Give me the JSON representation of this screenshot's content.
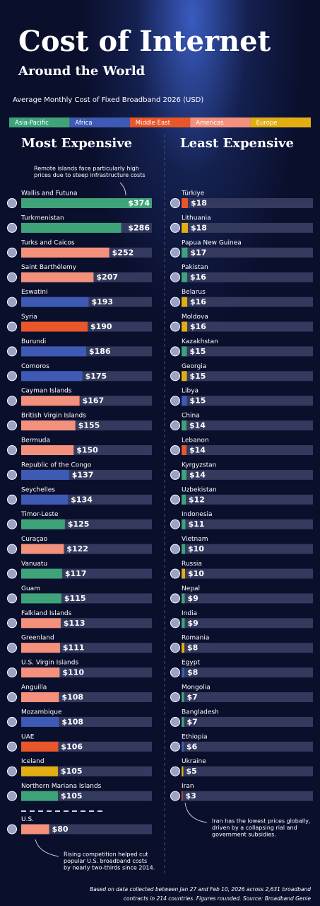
{
  "title": "Cost of Internet",
  "title_line2": "Around the World",
  "subtitle": "Average Monthly Cost of Fixed Broadband 2026 (USD)",
  "legend": [
    {
      "name": "Asia-Pacific",
      "color": "#3fa37a"
    },
    {
      "name": "Africa",
      "color": "#3e5ab4"
    },
    {
      "name": "Middle East",
      "color": "#e8562a"
    },
    {
      "name": "Americas",
      "color": "#f4917c"
    },
    {
      "name": "Europe",
      "color": "#e2ae12"
    }
  ],
  "chart_data": [
    {
      "type": "bar",
      "orientation": "horizontal",
      "title": "Most Expensive",
      "categories": [
        "Wallis and Futuna",
        "Turkmenistan",
        "Turks and Caicos",
        "Saint Barthélemy",
        "Eswatini",
        "Syria",
        "Burundi",
        "Comoros",
        "Cayman Islands",
        "British Virgin Islands",
        "Bermuda",
        "Republic of the Congo",
        "Seychelles",
        "Timor-Leste",
        "Curaçao",
        "Vanuatu",
        "Guam",
        "Falkland Islands",
        "Greenland",
        "U.S. Virgin Islands",
        "Anguilla",
        "Mozambique",
        "UAE",
        "Iceland",
        "Northern Mariana Islands",
        "U.S."
      ],
      "values": [
        374,
        286,
        252,
        207,
        193,
        190,
        186,
        175,
        167,
        155,
        150,
        137,
        134,
        125,
        122,
        117,
        115,
        113,
        111,
        110,
        108,
        108,
        106,
        105,
        105,
        80
      ],
      "value_labels": [
        "$374",
        "$286",
        "$252",
        "$207",
        "$193",
        "$190",
        "$186",
        "$175",
        "$167",
        "$155",
        "$150",
        "$137",
        "$134",
        "$125",
        "$122",
        "$117",
        "$115",
        "$113",
        "$111",
        "$110",
        "$108",
        "$108",
        "$106",
        "$105",
        "$105",
        "$80"
      ],
      "colors": [
        "#3fa37a",
        "#3fa37a",
        "#f4917c",
        "#f4917c",
        "#3e5ab4",
        "#e8562a",
        "#3e5ab4",
        "#3e5ab4",
        "#f4917c",
        "#f4917c",
        "#f4917c",
        "#3e5ab4",
        "#3e5ab4",
        "#3fa37a",
        "#f4917c",
        "#3fa37a",
        "#3fa37a",
        "#f4917c",
        "#f4917c",
        "#f4917c",
        "#f4917c",
        "#3e5ab4",
        "#e8562a",
        "#e2ae12",
        "#3fa37a",
        "#f4917c"
      ],
      "xlim": [
        0,
        374
      ],
      "annotations": [
        [
          "Remote islands face particularly high",
          "prices due to steep infrastructure costs"
        ],
        [
          "Rising competition helped cut",
          "popular U.S. broadband costs",
          "by nearly two-thirds since 2014."
        ]
      ]
    },
    {
      "type": "bar",
      "orientation": "horizontal",
      "title": "Least Expensive",
      "categories": [
        "Türkiye",
        "Lithuania",
        "Papua New Guinea",
        "Pakistan",
        "Belarus",
        "Moldova",
        "Kazakhstan",
        "Georgia",
        "Libya",
        "China",
        "Lebanon",
        "Kyrgyzstan",
        "Uzbekistan",
        "Indonesia",
        "Vietnam",
        "Russia",
        "Nepal",
        "India",
        "Romania",
        "Egypt",
        "Mongolia",
        "Bangladesh",
        "Ethiopia",
        "Ukraine",
        "Iran"
      ],
      "values": [
        18,
        18,
        17,
        16,
        16,
        16,
        15,
        15,
        15,
        14,
        14,
        14,
        12,
        11,
        10,
        10,
        9,
        9,
        8,
        8,
        7,
        7,
        6,
        5,
        3
      ],
      "value_labels": [
        "$18",
        "$18",
        "$17",
        "$16",
        "$16",
        "$16",
        "$15",
        "$15",
        "$15",
        "$14",
        "$14",
        "$14",
        "$12",
        "$11",
        "$10",
        "$10",
        "$9",
        "$9",
        "$8",
        "$8",
        "$7",
        "$7",
        "$6",
        "$5",
        "$3"
      ],
      "colors": [
        "#e8562a",
        "#e2ae12",
        "#3fa37a",
        "#3fa37a",
        "#e2ae12",
        "#e2ae12",
        "#3fa37a",
        "#e2ae12",
        "#3e5ab4",
        "#3fa37a",
        "#e8562a",
        "#3fa37a",
        "#3fa37a",
        "#3fa37a",
        "#3fa37a",
        "#e2ae12",
        "#3fa37a",
        "#3fa37a",
        "#e2ae12",
        "#3e5ab4",
        "#3fa37a",
        "#3fa37a",
        "#3e5ab4",
        "#e2ae12",
        "#e8562a"
      ],
      "xlim": [
        0,
        374
      ],
      "annotations": [
        [
          "Iran has the lowest prices globally,",
          "driven by a collapsing rial and",
          "government subsidies."
        ]
      ]
    }
  ],
  "footnote": [
    "Based on data collected between Jan 27 and Feb 10, 2026 across 2,631 broadband",
    "contracts in 214 countries. Figures rounded. Source: Broadband Genie"
  ]
}
